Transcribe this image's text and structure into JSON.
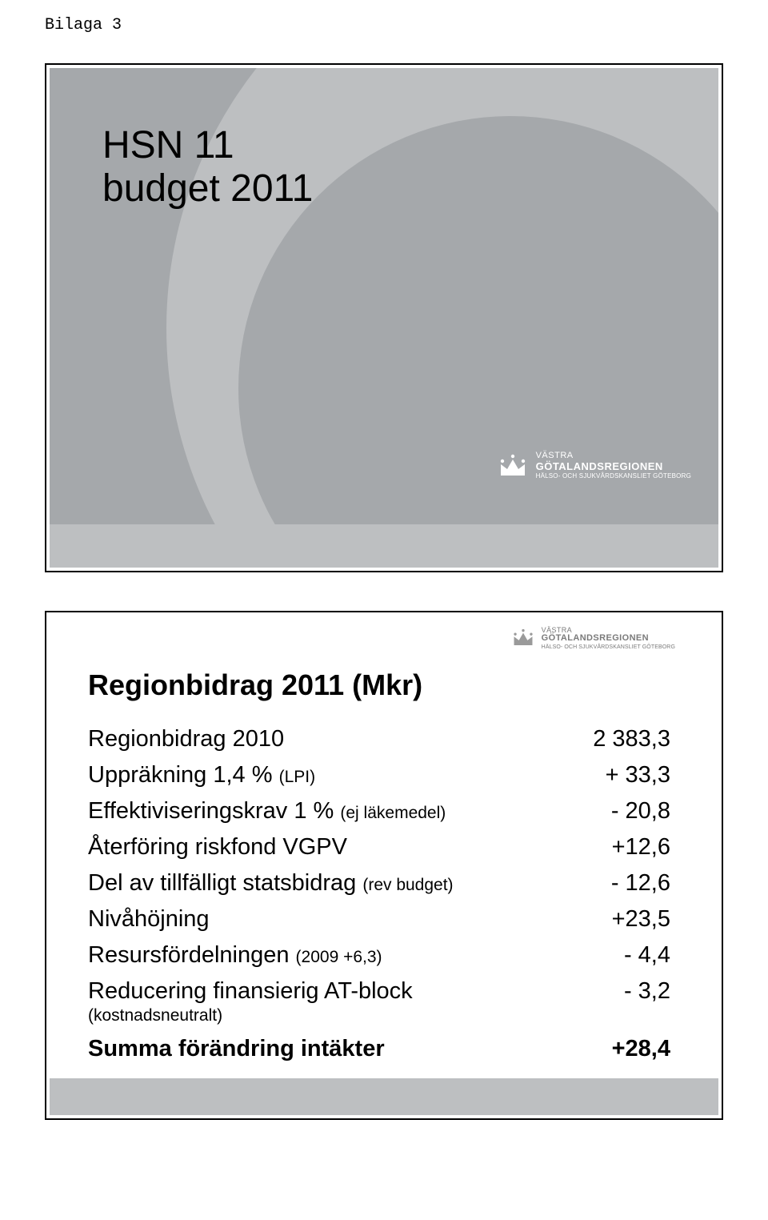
{
  "top_label": "Bilaga 3",
  "colors": {
    "slide1_bg": "#a5a8ab",
    "swirl_light": "#bdbfc1",
    "footer_band": "#bdbfc1",
    "text": "#000000",
    "logo_white": "#ffffff",
    "logo_gray": "#7b7b7b",
    "page_bg": "#ffffff",
    "border": "#000000"
  },
  "logo": {
    "line1": "VÄSTRA",
    "line2": "GÖTALANDSREGIONEN",
    "line3": "HÄLSO- OCH SJUKVÅRDSKANSLIET GÖTEBORG"
  },
  "slide1": {
    "title_line1": "HSN 11",
    "title_line2": "budget 2011"
  },
  "slide2": {
    "heading": "Regionbidrag 2011 (Mkr)",
    "rows": [
      {
        "label": "Regionbidrag 2010",
        "sub": "",
        "value": "2 383,3"
      },
      {
        "label": "Uppräkning 1,4 % ",
        "sub": "(LPI)",
        "value": "+ 33,3"
      },
      {
        "label": "Effektiviseringskrav 1 % ",
        "sub": "(ej läkemedel)",
        "value": "- 20,8"
      },
      {
        "label": "Återföring riskfond VGPV",
        "sub": "",
        "value": "+12,6"
      },
      {
        "label": "Del av tillfälligt statsbidrag ",
        "sub": "(rev budget)",
        "value": "- 12,6"
      },
      {
        "label": "Nivåhöjning",
        "sub": "",
        "value": "+23,5"
      },
      {
        "label": "Resursfördelningen ",
        "sub": "(2009 +6,3)",
        "value": "- 4,4"
      },
      {
        "label": "Reducering finansierig AT-block",
        "sub": "",
        "value": "- 3,2"
      }
    ],
    "note": "(kostnadsneutralt)",
    "sum_label": "Summa förändring intäkter",
    "sum_value": "+28,4"
  }
}
